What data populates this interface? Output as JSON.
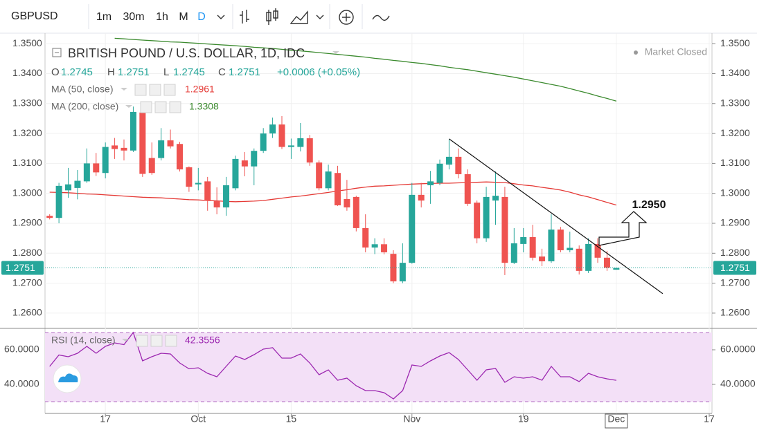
{
  "toolbar": {
    "symbol": "GBPUSD",
    "intervals": [
      "1m",
      "30m",
      "1h",
      "M",
      "D"
    ]
  },
  "chart_data": [
    {
      "type": "candlestick",
      "title": "BRITISH POUND / U.S. DOLLAR, 1D, IDC",
      "status": "Market Closed",
      "ohlc_labels": [
        "O",
        "H",
        "L",
        "C"
      ],
      "change": "+0.0006 (+0.05%)",
      "up_color": "#26a69a",
      "down_color": "#ef5350",
      "open": [
        1.2925,
        1.2918,
        1.301,
        1.3018,
        1.304,
        1.31,
        1.3068,
        1.316,
        1.3152,
        1.3143,
        1.327,
        1.3118,
        1.3118,
        1.3177,
        1.3165,
        1.3087,
        1.303,
        1.304,
        1.2975,
        1.2953,
        1.3017,
        1.311,
        1.309,
        1.3142,
        1.32,
        1.323,
        1.3155,
        1.3155,
        1.3184,
        1.3103,
        1.3017,
        1.3068,
        1.2981,
        1.2988,
        1.2884,
        1.2819,
        1.283,
        1.2798,
        1.2706,
        1.2768,
        1.2995,
        1.3027,
        1.3035,
        1.3096,
        1.3122,
        1.3064,
        1.2969,
        1.285,
        1.2976,
        1.2988,
        1.2768,
        1.2831,
        1.2854,
        1.2789,
        1.2773,
        1.2879,
        1.281,
        1.2815,
        1.2741,
        1.2831,
        1.2785,
        1.2745
      ],
      "high": [
        1.293,
        1.3035,
        1.3085,
        1.3078,
        1.315,
        1.3135,
        1.317,
        1.3185,
        1.318,
        1.329,
        1.329,
        1.317,
        1.3218,
        1.3213,
        1.3172,
        1.309,
        1.3085,
        1.3055,
        1.302,
        1.3055,
        1.3126,
        1.3138,
        1.315,
        1.3218,
        1.3253,
        1.3258,
        1.3183,
        1.3235,
        1.3195,
        1.311,
        1.3096,
        1.3092,
        1.3045,
        1.2992,
        1.293,
        1.285,
        1.285,
        1.281,
        1.2833,
        1.3035,
        1.3035,
        1.3075,
        1.3113,
        1.318,
        1.315,
        1.308,
        1.2976,
        1.3022,
        1.3073,
        1.3022,
        1.2884,
        1.2884,
        1.2895,
        1.2815,
        1.293,
        1.2888,
        1.2872,
        1.2826,
        1.285,
        1.285,
        1.2808,
        1.2751
      ],
      "low": [
        1.2913,
        1.29,
        1.2985,
        1.298,
        1.3035,
        1.3058,
        1.305,
        1.3115,
        1.311,
        1.3138,
        1.3055,
        1.3062,
        1.311,
        1.315,
        1.3073,
        1.3005,
        1.301,
        1.2942,
        1.293,
        1.2925,
        1.301,
        1.3057,
        1.3027,
        1.3135,
        1.3185,
        1.3148,
        1.3115,
        1.314,
        1.3092,
        1.301,
        1.301,
        1.2958,
        1.2942,
        1.2873,
        1.2803,
        1.2797,
        1.2796,
        1.27,
        1.27,
        1.2765,
        1.2953,
        1.2965,
        1.3027,
        1.308,
        1.305,
        1.2958,
        1.2833,
        1.2838,
        1.2895,
        1.2727,
        1.2764,
        1.2803,
        1.2776,
        1.2757,
        1.2768,
        1.2803,
        1.2803,
        1.2729,
        1.2734,
        1.2768,
        1.2741,
        1.2745
      ],
      "close": [
        1.2918,
        1.3025,
        1.303,
        1.3042,
        1.31,
        1.307,
        1.3155,
        1.3148,
        1.3143,
        1.3272,
        1.3065,
        1.3068,
        1.3177,
        1.3157,
        1.308,
        1.3022,
        1.3035,
        1.2975,
        1.2953,
        1.3027,
        1.3115,
        1.309,
        1.3142,
        1.32,
        1.323,
        1.3155,
        1.316,
        1.3184,
        1.3103,
        1.3017,
        1.3073,
        1.296,
        1.2953,
        1.2884,
        1.2819,
        1.283,
        1.2803,
        1.2706,
        1.2768,
        1.2995,
        1.2976,
        1.304,
        1.3099,
        1.3122,
        1.3064,
        1.2965,
        1.285,
        1.2988,
        1.2992,
        1.2768,
        1.2833,
        1.2854,
        1.2785,
        1.2773,
        1.2879,
        1.281,
        1.2818,
        1.2741,
        1.2831,
        1.2785,
        1.2752,
        1.2751
      ],
      "series": [
        {
          "name": "MA (50, close)",
          "color": "#e53935",
          "values": [
            1.3004,
            1.3003,
            1.3002,
            1.3,
            1.2998,
            1.2997,
            1.2995,
            1.2993,
            1.2991,
            1.2989,
            1.2987,
            1.2986,
            1.2985,
            1.2983,
            1.2981,
            1.2979,
            1.2978,
            1.2976,
            1.2975,
            1.2973,
            1.2972,
            1.2973,
            1.2974,
            1.2976,
            1.298,
            1.2984,
            1.2988,
            1.2991,
            1.2995,
            1.2999,
            1.3003,
            1.3008,
            1.3012,
            1.3017,
            1.3021,
            1.3024,
            1.3025,
            1.3027,
            1.3029,
            1.3031,
            1.3032,
            1.3033,
            1.3034,
            1.3034,
            1.3035,
            1.3036,
            1.3037,
            1.3038,
            1.3037,
            1.3036,
            1.3032,
            1.3028,
            1.3025,
            1.302,
            1.3016,
            1.3011,
            1.3004,
            1.2995,
            1.2988,
            1.2979,
            1.297,
            1.2961
          ]
        },
        {
          "name": "MA (200, close)",
          "color": "#3b8a2e",
          "values": [
            null,
            null,
            null,
            null,
            null,
            null,
            null,
            1.3518,
            1.3516,
            1.3514,
            1.3512,
            1.351,
            1.3508,
            1.3506,
            1.3505,
            1.3503,
            1.3501,
            1.3499,
            1.3497,
            1.3495,
            1.3493,
            1.3491,
            1.3488,
            1.3486,
            1.3484,
            1.3481,
            1.3478,
            1.3476,
            1.3473,
            1.347,
            1.3467,
            1.3464,
            1.3461,
            1.3458,
            1.3455,
            1.3451,
            1.3448,
            1.3444,
            1.3441,
            1.3437,
            1.3434,
            1.343,
            1.3426,
            1.3421,
            1.3417,
            1.3413,
            1.3408,
            1.3403,
            1.3398,
            1.3393,
            1.3388,
            1.3382,
            1.3376,
            1.337,
            1.3364,
            1.3358,
            1.335,
            1.3342,
            1.3334,
            1.3325,
            1.3317,
            1.3308
          ]
        }
      ],
      "trendline": {
        "x": [
          43,
          66
        ],
        "y": [
          1.3182,
          1.2665
        ],
        "color": "#111111"
      },
      "annotation": "1.2950",
      "xlim": [
        -0.5,
        71.3
      ],
      "xticks": [
        {
          "value": 6,
          "label": "17"
        },
        {
          "value": 16,
          "label": "Oct"
        },
        {
          "value": 26,
          "label": "15"
        },
        {
          "value": 39,
          "label": "Nov"
        },
        {
          "value": 51,
          "label": "19"
        },
        {
          "value": 61,
          "label": "Dec"
        },
        {
          "value": 71,
          "label": "17"
        }
      ],
      "ylim": [
        1.2549,
        1.3535
      ],
      "yticks": [
        {
          "value": 1.35,
          "label": "1.3500"
        },
        {
          "value": 1.34,
          "label": "1.3400"
        },
        {
          "value": 1.33,
          "label": "1.3300"
        },
        {
          "value": 1.32,
          "label": "1.3200"
        },
        {
          "value": 1.31,
          "label": "1.3100"
        },
        {
          "value": 1.3,
          "label": "1.3000"
        },
        {
          "value": 1.29,
          "label": "1.2900"
        },
        {
          "value": 1.28,
          "label": "1.2800"
        },
        {
          "value": 1.27,
          "label": "1.2700"
        },
        {
          "value": 1.26,
          "label": "1.2600"
        }
      ],
      "grid": true
    },
    {
      "type": "line",
      "series": [
        {
          "name": "RSI (14, close)",
          "color": "#9c27b0",
          "values": [
            50.4,
            57,
            56,
            58,
            62,
            58,
            62,
            64,
            63,
            70,
            53.6,
            56,
            58,
            57.6,
            52.4,
            49,
            49.6,
            46.4,
            44.4,
            50.4,
            56.4,
            54.4,
            57.2,
            60.4,
            61.2,
            55.2,
            55.2,
            57.6,
            52.4,
            45.6,
            48.4,
            42.4,
            43.6,
            39.2,
            36.4,
            36.4,
            35.2,
            31.6,
            36.4,
            51.2,
            50.4,
            53.6,
            56.4,
            58.4,
            54.4,
            48.4,
            42.4,
            48.4,
            49.2,
            41.2,
            44.4,
            43.6,
            44.4,
            42.4,
            50.4,
            44.4,
            44.4,
            41.6,
            46.4,
            44.4,
            43.2,
            42.3556
          ]
        }
      ],
      "band": [
        30,
        70
      ],
      "band_color": "#f3e0f7",
      "ylim": [
        23.2,
        72.4
      ],
      "yticks": [
        {
          "value": 60,
          "label": "60.0000"
        },
        {
          "value": 40,
          "label": "40.0000"
        }
      ]
    }
  ]
}
